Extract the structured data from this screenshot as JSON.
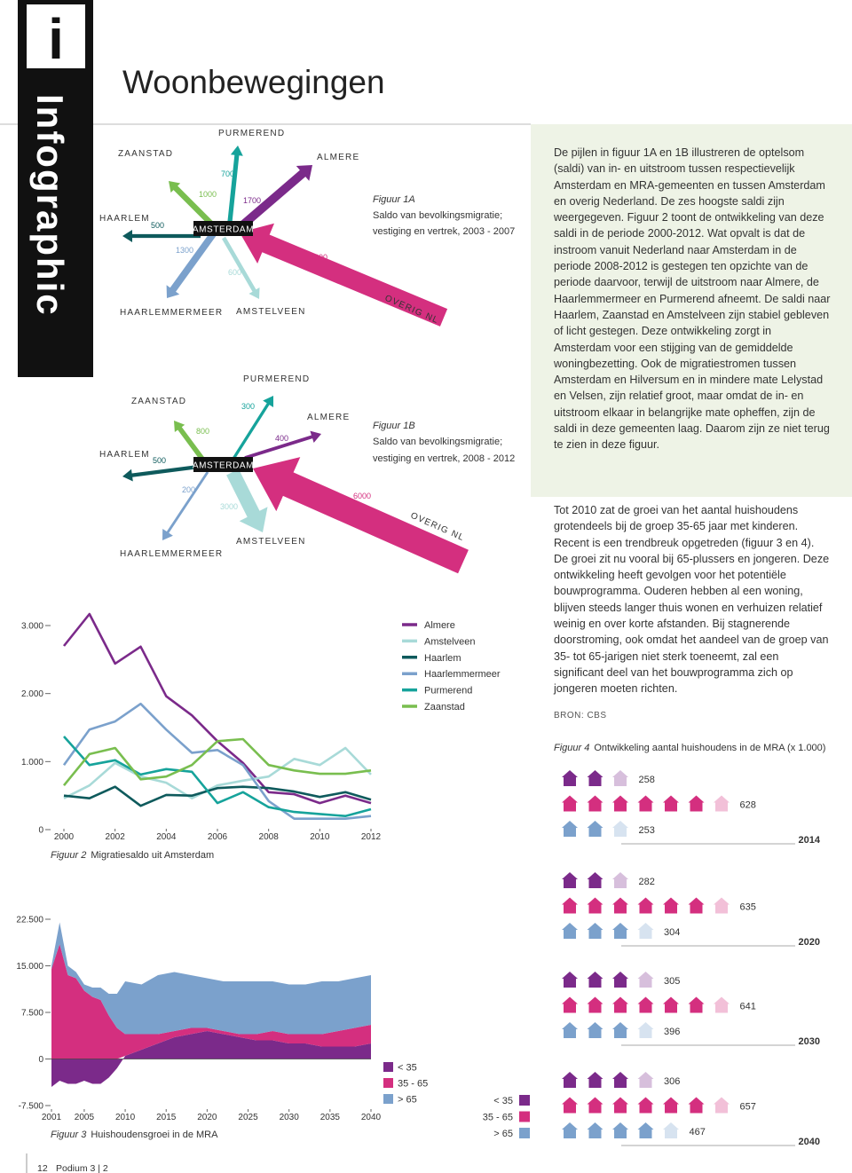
{
  "sidebar": {
    "icon": "i",
    "label": "Infographic"
  },
  "title": "Woonbewegingen",
  "figure1a": {
    "label": "Figuur 1A",
    "caption": [
      "Saldo van bevolkingsmigratie;",
      "vestiging en vertrek, 2003 - 2007"
    ],
    "center": "AMSTERDAM",
    "arrows": [
      {
        "place": "HAARLEM",
        "value": 500,
        "color": "#0e5a5c"
      },
      {
        "place": "ZAANSTAD",
        "value": 1000,
        "color": "#79be4f"
      },
      {
        "place": "PURMEREND",
        "value": 700,
        "color": "#16a39b"
      },
      {
        "place": "ALMERE",
        "value": 1700,
        "color": "#7b2a8a"
      },
      {
        "place": "HAARLEMMERMEER",
        "value": 1300,
        "color": "#7ba1cc"
      },
      {
        "place": "AMSTELVEEN",
        "value": 600,
        "color": "#a8dad8"
      },
      {
        "place": "OVERIG NL",
        "value": 4300,
        "color": "#d42f7f"
      }
    ]
  },
  "figure1b": {
    "label": "Figuur 1B",
    "caption": [
      "Saldo van bevolkingsmigratie;",
      "vestiging en vertrek, 2008 - 2012"
    ],
    "center": "AMSTERDAM",
    "arrows": [
      {
        "place": "HAARLEM",
        "value": 500,
        "color": "#0e5a5c"
      },
      {
        "place": "ZAANSTAD",
        "value": 800,
        "color": "#79be4f"
      },
      {
        "place": "PURMEREND",
        "value": 300,
        "color": "#16a39b"
      },
      {
        "place": "ALMERE",
        "value": 400,
        "color": "#7b2a8a"
      },
      {
        "place": "HAARLEMMERMEER",
        "value": 200,
        "color": "#7ba1cc"
      },
      {
        "place": "AMSTELVEEN",
        "value": 3000,
        "color": "#a8dad8"
      },
      {
        "place": "OVERIG NL",
        "value": 6000,
        "color": "#d42f7f"
      }
    ]
  },
  "text": {
    "paragraph1": "De pijlen in figuur 1A en 1B illustreren de optelsom (saldi) van in- en uitstroom tussen respectievelijk Amsterdam en MRA-gemeenten en tussen Amsterdam en overig Nederland. De zes hoogste saldi zijn weergegeven. Figuur 2 toont de ontwikkeling van deze saldi in de periode 2000-2012. Wat opvalt is dat de instroom vanuit Nederland naar Amsterdam in de periode 2008-2012 is gestegen ten opzichte van de periode daarvoor, terwijl de uitstroom naar Almere, de Haarlemmermeer en Purmerend afneemt. De saldi naar Haarlem, Zaanstad en Amstelveen zijn stabiel gebleven of licht gestegen. Deze ontwikkeling zorgt in Amsterdam voor een stijging van de gemiddelde woningbezetting. Ook de migratiestromen tussen Amsterdam en Hilversum en in mindere mate Lelystad en Velsen, zijn relatief groot, maar omdat de in- en uitstroom elkaar in belangrijke mate opheffen, zijn de saldi in deze gemeenten laag. Daarom zijn ze niet terug te zien in deze figuur.",
    "paragraph2": "Tot 2010 zat de groei van het aantal huishoudens grotendeels bij de groep 35-65 jaar met kinderen. Recent is een trendbreuk opgetreden (figuur 3 en 4). De groei zit nu vooral bij 65-plussers en jongeren. Deze ontwikkeling heeft gevolgen voor het potentiële bouwprogramma. Ouderen hebben al een woning, blijven steeds langer thuis wonen en verhuizen relatief weinig en over korte afstanden. Bij stagnerende doorstroming, ook omdat het aandeel van de groep van 35- tot 65-jarigen niet sterk toeneemt, zal een significant deel van het bouwprogramma zich op jongeren moeten richten.",
    "source": "BRON: CBS"
  },
  "footer": {
    "page": "12",
    "publication": "Podium 3 | 2"
  },
  "chart_data": [
    {
      "type": "line",
      "label": "Figuur 2",
      "title": "Migratiesaldo uit Amsterdam",
      "x": [
        2000,
        2001,
        2002,
        2003,
        2004,
        2005,
        2006,
        2007,
        2008,
        2009,
        2010,
        2011,
        2012
      ],
      "xlim": [
        2000,
        2012
      ],
      "xticks": [
        2000,
        2002,
        2004,
        2006,
        2008,
        2010,
        2012
      ],
      "ylim": [
        0,
        3300
      ],
      "yticks": [
        0,
        {
          "value": 1000,
          "label": "1.000"
        },
        {
          "value": 2000,
          "label": "2.000"
        },
        {
          "value": 3000,
          "label": "3.000"
        }
      ],
      "series": [
        {
          "name": "Almere",
          "color": "#7b2a8a",
          "values": [
            2700,
            3170,
            2440,
            2690,
            1960,
            1680,
            1300,
            980,
            550,
            520,
            390,
            500,
            390
          ]
        },
        {
          "name": "Amstelveen",
          "color": "#a8dad8",
          "values": [
            460,
            650,
            980,
            780,
            690,
            460,
            650,
            720,
            780,
            1040,
            950,
            1200,
            810
          ]
        },
        {
          "name": "Haarlem",
          "color": "#0e5a5c",
          "values": [
            500,
            460,
            630,
            350,
            510,
            500,
            610,
            630,
            610,
            560,
            480,
            550,
            440
          ]
        },
        {
          "name": "Haarlemmermeer",
          "color": "#7ba1cc",
          "values": [
            950,
            1470,
            1590,
            1850,
            1470,
            1130,
            1170,
            950,
            420,
            160,
            160,
            160,
            200
          ]
        },
        {
          "name": "Purmerend",
          "color": "#16a39b",
          "values": [
            1370,
            950,
            1020,
            810,
            890,
            850,
            390,
            550,
            330,
            260,
            230,
            200,
            300
          ]
        },
        {
          "name": "Zaanstad",
          "color": "#79be4f",
          "values": [
            650,
            1110,
            1200,
            740,
            780,
            950,
            1300,
            1330,
            950,
            870,
            820,
            820,
            870
          ]
        }
      ]
    },
    {
      "type": "area",
      "stacked": true,
      "label": "Figuur 3",
      "title": "Huishoudensgroei in de MRA",
      "x": [
        2001,
        2002,
        2003,
        2004,
        2005,
        2006,
        2007,
        2008,
        2009,
        2010,
        2012,
        2014,
        2016,
        2018,
        2020,
        2022,
        2024,
        2026,
        2028,
        2030,
        2032,
        2034,
        2036,
        2038,
        2040
      ],
      "xlim": [
        2001,
        2040
      ],
      "xticks": [
        2001,
        2005,
        2010,
        2015,
        2020,
        2025,
        2030,
        2035,
        2040
      ],
      "ylim": [
        -7500,
        22500
      ],
      "yticks": [
        {
          "value": -7500,
          "label": "-7.500"
        },
        0,
        {
          "value": 7500,
          "label": "7.500"
        },
        {
          "value": 15000,
          "label": "15.000"
        },
        {
          "value": 22500,
          "label": "22.500"
        }
      ],
      "series": [
        {
          "name": "< 35",
          "color": "#7b2a8a",
          "values": [
            -4500,
            -3500,
            -4000,
            -4000,
            -3500,
            -4000,
            -4000,
            -3000,
            -1500,
            500,
            1500,
            2500,
            3500,
            4000,
            4500,
            4000,
            3500,
            3000,
            3000,
            2500,
            2500,
            2000,
            2000,
            2000,
            2500
          ]
        },
        {
          "name": "35 - 65",
          "color": "#d42f7f",
          "values": [
            14500,
            18500,
            13500,
            13000,
            11000,
            10000,
            9500,
            7000,
            5000,
            3500,
            2500,
            1500,
            1000,
            1000,
            500,
            500,
            500,
            1000,
            1500,
            1500,
            1500,
            2000,
            2500,
            3000,
            3000
          ]
        },
        {
          "name": "> 65",
          "color": "#7ba1cc",
          "values": [
            500,
            3500,
            1500,
            1000,
            1000,
            1500,
            2000,
            3500,
            5500,
            8500,
            8000,
            9500,
            9500,
            8500,
            8000,
            8000,
            8500,
            8500,
            8000,
            8000,
            8000,
            8500,
            8000,
            8000,
            8000
          ]
        }
      ]
    },
    {
      "type": "pictogram",
      "label": "Figuur 4",
      "title": "Ontwikkeling aantal huishoudens in de MRA (x 1.000)",
      "categories": [
        "2014",
        "2020",
        "2030",
        "2040"
      ],
      "series": [
        {
          "name": "< 35",
          "color": "#7b2a8a",
          "values": [
            258,
            282,
            305,
            306
          ]
        },
        {
          "name": "35 - 65",
          "color": "#d42f7f",
          "values": [
            628,
            635,
            641,
            657
          ]
        },
        {
          "name": "> 65",
          "color": "#7ba1cc",
          "values": [
            253,
            304,
            396,
            467
          ]
        }
      ]
    }
  ]
}
